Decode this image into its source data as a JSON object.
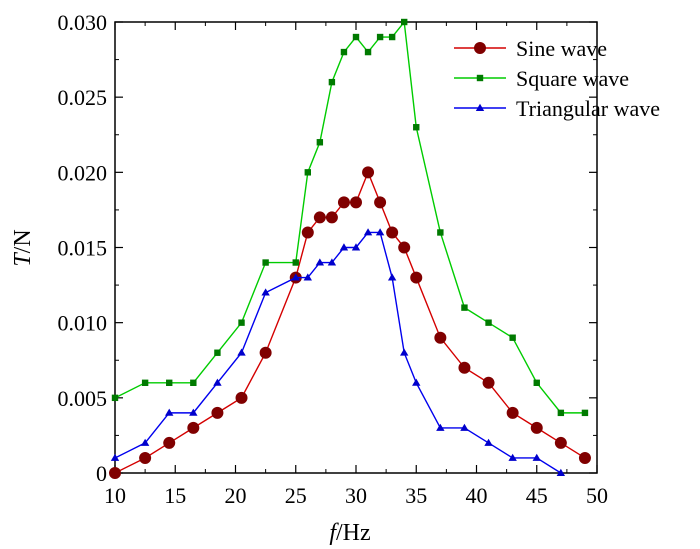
{
  "chart_data": {
    "type": "line",
    "title": "",
    "xlabel": {
      "symbol": "f",
      "unit": "/Hz"
    },
    "ylabel": {
      "symbol": "T",
      "unit": "/N"
    },
    "xlim": [
      10,
      50
    ],
    "ylim": [
      0,
      0.03
    ],
    "xticks": [
      10,
      15,
      20,
      25,
      30,
      35,
      40,
      45,
      50
    ],
    "yticks": [
      "0",
      "0.005",
      "0.010",
      "0.015",
      "0.020",
      "0.025",
      "0.030"
    ],
    "ytick_values": [
      0,
      0.005,
      0.01,
      0.015,
      0.02,
      0.025,
      0.03
    ],
    "grid": false,
    "legend_position": "top-right",
    "series": [
      {
        "name": "Sine wave",
        "color": "#d40000",
        "marker": "circle",
        "marker_color": "#800000",
        "x": [
          10,
          12.5,
          14.5,
          16.5,
          18.5,
          20.5,
          22.5,
          25,
          26,
          27,
          28,
          29,
          30,
          31,
          32,
          33,
          34,
          35,
          37,
          39,
          41,
          43,
          45,
          47,
          49
        ],
        "y": [
          0,
          0.001,
          0.002,
          0.003,
          0.004,
          0.005,
          0.008,
          0.013,
          0.016,
          0.017,
          0.017,
          0.018,
          0.018,
          0.02,
          0.018,
          0.016,
          0.015,
          0.013,
          0.009,
          0.007,
          0.006,
          0.004,
          0.003,
          0.002,
          0.001
        ]
      },
      {
        "name": "Square wave",
        "color": "#00cc00",
        "marker": "square",
        "marker_color": "#007a00",
        "x": [
          10,
          12.5,
          14.5,
          16.5,
          18.5,
          20.5,
          22.5,
          25,
          26,
          27,
          28,
          29,
          30,
          31,
          32,
          33,
          34,
          35,
          37,
          39,
          41,
          43,
          45,
          47,
          49
        ],
        "y": [
          0.005,
          0.006,
          0.006,
          0.006,
          0.008,
          0.01,
          0.014,
          0.014,
          0.02,
          0.022,
          0.026,
          0.028,
          0.029,
          0.028,
          0.029,
          0.029,
          0.03,
          0.023,
          0.016,
          0.011,
          0.01,
          0.009,
          0.006,
          0.004,
          0.004
        ]
      },
      {
        "name": "Triangular wave",
        "color": "#0000ee",
        "marker": "triangle",
        "marker_color": "#0000cc",
        "x": [
          10,
          12.5,
          14.5,
          16.5,
          18.5,
          20.5,
          22.5,
          25,
          26,
          27,
          28,
          29,
          30,
          31,
          32,
          33,
          34,
          35,
          37,
          39,
          41,
          43,
          45,
          47
        ],
        "y": [
          0.001,
          0.002,
          0.004,
          0.004,
          0.006,
          0.008,
          0.012,
          0.013,
          0.013,
          0.014,
          0.014,
          0.015,
          0.015,
          0.016,
          0.016,
          0.013,
          0.008,
          0.006,
          0.003,
          0.003,
          0.002,
          0.001,
          0.001,
          0
        ]
      }
    ]
  }
}
